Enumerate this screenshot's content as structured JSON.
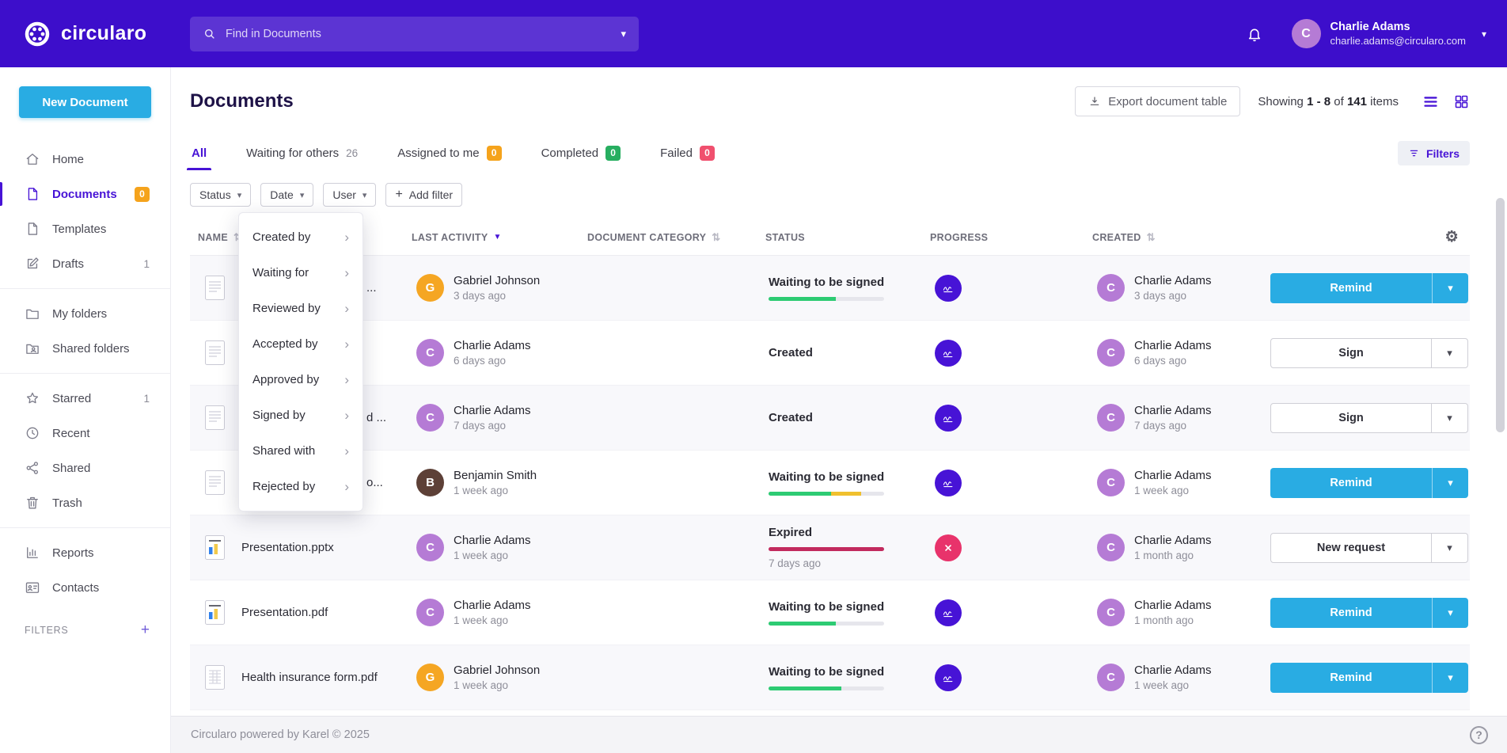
{
  "icons": {
    "caret_down": "▾",
    "chevron_right": "›",
    "sort_both": "⇅",
    "sort_desc": "▼",
    "gear": "⚙",
    "help": "?",
    "plus": "+"
  },
  "colors": {
    "topbar": "#3d0ecb",
    "accent": "#4713d6",
    "primary_blue": "#29ace3"
  },
  "topbar": {
    "brand": "circularo",
    "search_placeholder": "Find in Documents",
    "user_initial": "C",
    "user_name": "Charlie Adams",
    "user_email": "charlie.adams@circularo.com"
  },
  "sidebar": {
    "new_document_label": "New Document",
    "items": [
      {
        "label": "Home",
        "icon": "home"
      },
      {
        "label": "Documents",
        "icon": "file",
        "active": true,
        "badge": "0"
      },
      {
        "label": "Templates",
        "icon": "file"
      },
      {
        "label": "Drafts",
        "icon": "edit",
        "count": "1"
      },
      {
        "label": "My folders",
        "icon": "folder",
        "group_start": true
      },
      {
        "label": "Shared folders",
        "icon": "folder-shared"
      },
      {
        "label": "Starred",
        "icon": "star",
        "count": "1",
        "group_start": true
      },
      {
        "label": "Recent",
        "icon": "clock"
      },
      {
        "label": "Shared",
        "icon": "share"
      },
      {
        "label": "Trash",
        "icon": "trash"
      },
      {
        "label": "Reports",
        "icon": "chart",
        "group_start": true
      },
      {
        "label": "Contacts",
        "icon": "contacts"
      }
    ],
    "filters_label": "FILTERS"
  },
  "page": {
    "title": "Documents",
    "export_label": "Export document table",
    "showing": {
      "prefix": "Showing",
      "range": "1 - 8",
      "of": "of",
      "total": "141",
      "suffix": "items"
    },
    "filters_button": "Filters"
  },
  "tabs": [
    {
      "label": "All",
      "active": true
    },
    {
      "label": "Waiting for others",
      "count": "26"
    },
    {
      "label": "Assigned to me",
      "badge": "0",
      "badge_color": "#f5a31c"
    },
    {
      "label": "Completed",
      "badge": "0",
      "badge_color": "#27ae60"
    },
    {
      "label": "Failed",
      "badge": "0",
      "badge_color": "#f0506e"
    }
  ],
  "filter_chips": [
    {
      "label": "Status"
    },
    {
      "label": "Date"
    },
    {
      "label": "User"
    }
  ],
  "add_filter": {
    "label": "Add filter"
  },
  "context_menu": {
    "items": [
      "Created by",
      "Waiting for",
      "Reviewed by",
      "Accepted by",
      "Approved by",
      "Signed by",
      "Shared with",
      "Rejected by"
    ]
  },
  "table": {
    "columns": [
      {
        "label": "NAME",
        "sort": "both"
      },
      {
        "label": "LAST ACTIVITY",
        "sort": "desc"
      },
      {
        "label": "DOCUMENT CATEGORY",
        "sort": "both"
      },
      {
        "label": "STATUS"
      },
      {
        "label": "PROGRESS"
      },
      {
        "label": "CREATED",
        "sort": "both"
      }
    ],
    "rows": [
      {
        "doc_icon": "doc-lines",
        "name": "...",
        "name_covered": true,
        "activity": {
          "initial": "G",
          "color": "#f5a623",
          "name": "Gabriel Johnson",
          "time": "3 days ago"
        },
        "status": {
          "label": "Waiting to be signed",
          "bar": [
            {
              "color": "#2dcb73",
              "pct": 58
            }
          ]
        },
        "progress": {
          "icon": "signature",
          "color": "#4713d6"
        },
        "created": {
          "initial": "C",
          "color": "#b57bd5",
          "name": "Charlie Adams",
          "time": "3 days ago"
        },
        "action": {
          "label": "Remind",
          "style": "primary"
        }
      },
      {
        "doc_icon": "doc-lines",
        "name": "",
        "name_covered": true,
        "activity": {
          "initial": "C",
          "color": "#b57bd5",
          "name": "Charlie Adams",
          "time": "6 days ago"
        },
        "status": {
          "label": "Created"
        },
        "progress": {
          "icon": "signature",
          "color": "#4713d6"
        },
        "created": {
          "initial": "C",
          "color": "#b57bd5",
          "name": "Charlie Adams",
          "time": "6 days ago"
        },
        "action": {
          "label": "Sign",
          "style": "secondary"
        }
      },
      {
        "doc_icon": "doc-lines",
        "name": "d ...",
        "name_covered": true,
        "activity": {
          "initial": "C",
          "color": "#b57bd5",
          "name": "Charlie Adams",
          "time": "7 days ago"
        },
        "status": {
          "label": "Created"
        },
        "progress": {
          "icon": "signature",
          "color": "#4713d6"
        },
        "created": {
          "initial": "C",
          "color": "#b57bd5",
          "name": "Charlie Adams",
          "time": "7 days ago"
        },
        "action": {
          "label": "Sign",
          "style": "secondary"
        }
      },
      {
        "doc_icon": "doc-lines",
        "name": "o...",
        "name_covered": true,
        "activity": {
          "initial": "B",
          "color": "#5d4037",
          "name": "Benjamin Smith",
          "time": "1 week ago"
        },
        "status": {
          "label": "Waiting to be signed",
          "bar": [
            {
              "color": "#2dcb73",
              "pct": 54
            },
            {
              "color": "#f0c02e",
              "pct": 26
            }
          ]
        },
        "progress": {
          "icon": "signature",
          "color": "#4713d6"
        },
        "created": {
          "initial": "C",
          "color": "#b57bd5",
          "name": "Charlie Adams",
          "time": "1 week ago"
        },
        "action": {
          "label": "Remind",
          "style": "primary"
        }
      },
      {
        "doc_icon": "doc-chart",
        "name": "Presentation.pptx",
        "name_covered": false,
        "activity": {
          "initial": "C",
          "color": "#b57bd5",
          "name": "Charlie Adams",
          "time": "1 week ago"
        },
        "status": {
          "label": "Expired",
          "bar": [
            {
              "color": "#c22a5e",
              "pct": 100
            }
          ],
          "sub": "7 days ago"
        },
        "progress": {
          "icon": "failed",
          "color": "#e8336b"
        },
        "created": {
          "initial": "C",
          "color": "#b57bd5",
          "name": "Charlie Adams",
          "time": "1 month ago"
        },
        "action": {
          "label": "New request",
          "style": "secondary"
        }
      },
      {
        "doc_icon": "doc-chart",
        "name": "Presentation.pdf",
        "name_covered": false,
        "activity": {
          "initial": "C",
          "color": "#b57bd5",
          "name": "Charlie Adams",
          "time": "1 week ago"
        },
        "status": {
          "label": "Waiting to be signed",
          "bar": [
            {
              "color": "#2dcb73",
              "pct": 58
            }
          ]
        },
        "progress": {
          "icon": "signature",
          "color": "#4713d6"
        },
        "created": {
          "initial": "C",
          "color": "#b57bd5",
          "name": "Charlie Adams",
          "time": "1 month ago"
        },
        "action": {
          "label": "Remind",
          "style": "primary"
        }
      },
      {
        "doc_icon": "doc-form",
        "name": "Health insurance form.pdf",
        "name_covered": false,
        "activity": {
          "initial": "G",
          "color": "#f5a623",
          "name": "Gabriel Johnson",
          "time": "1 week ago"
        },
        "status": {
          "label": "Waiting to be signed",
          "bar": [
            {
              "color": "#2dcb73",
              "pct": 63
            }
          ]
        },
        "progress": {
          "icon": "signature",
          "color": "#4713d6"
        },
        "created": {
          "initial": "C",
          "color": "#b57bd5",
          "name": "Charlie Adams",
          "time": "1 week ago"
        },
        "action": {
          "label": "Remind",
          "style": "primary"
        }
      }
    ]
  },
  "footer": {
    "text": "Circularo powered by Karel © 2025"
  }
}
